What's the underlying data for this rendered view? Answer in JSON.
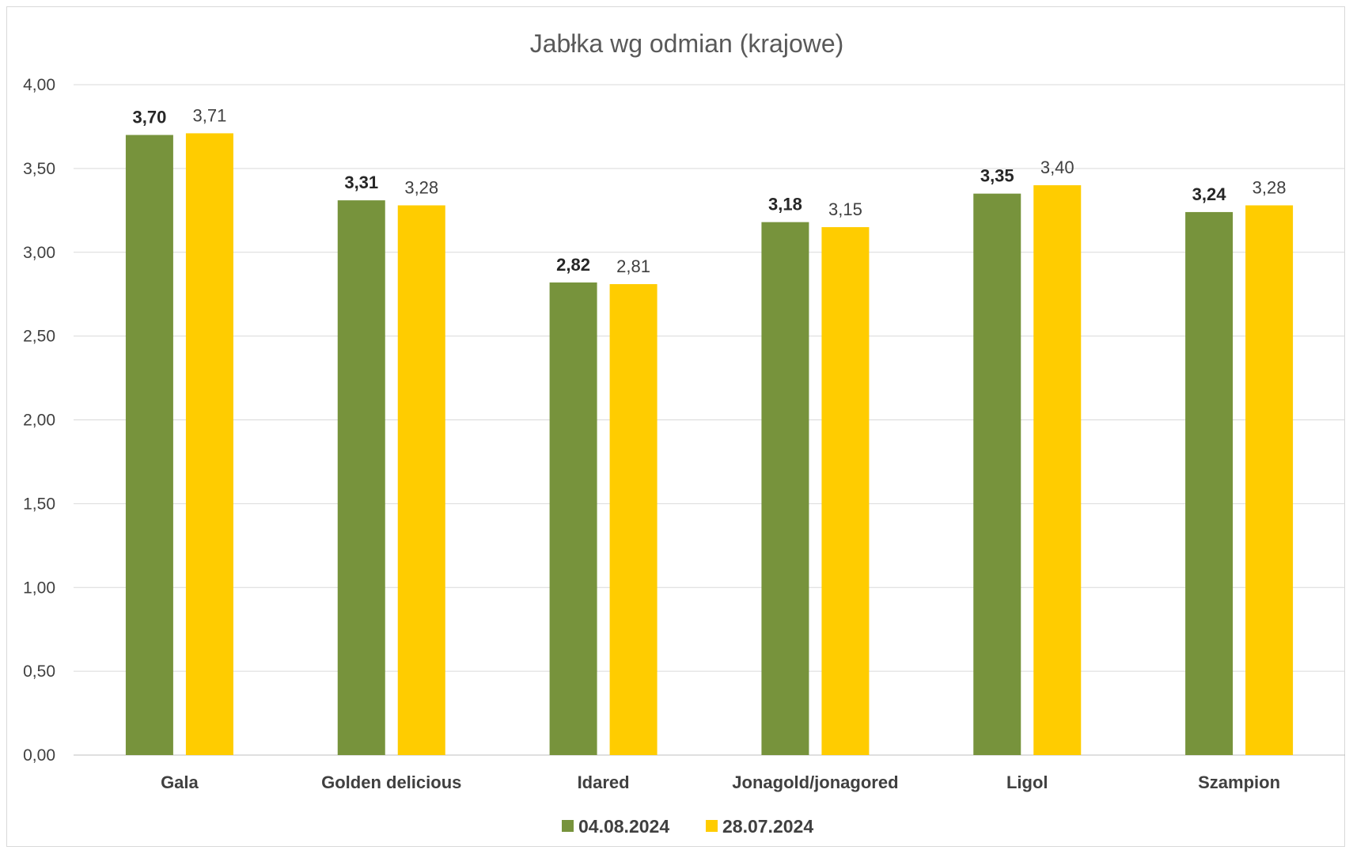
{
  "chart_data": {
    "type": "bar",
    "title": "Jabłka wg odmian (krajowe)",
    "xlabel": "",
    "ylabel": "",
    "categories": [
      "Gala",
      "Golden delicious",
      "Idared",
      "Jonagold/jonagored",
      "Ligol",
      "Szampion"
    ],
    "series": [
      {
        "name": "04.08.2024",
        "color": "#77933C",
        "values": [
          3.7,
          3.31,
          2.82,
          3.18,
          3.35,
          3.24
        ],
        "labels": [
          "3,70",
          "3,31",
          "2,82",
          "3,18",
          "3,35",
          "3,24"
        ],
        "label_bold": true
      },
      {
        "name": "28.07.2024",
        "color": "#FFCC00",
        "values": [
          3.71,
          3.28,
          2.81,
          3.15,
          3.4,
          3.28
        ],
        "labels": [
          "3,71",
          "3,28",
          "2,81",
          "3,15",
          "3,40",
          "3,28"
        ],
        "label_bold": false
      }
    ],
    "ylim": [
      0,
      4
    ],
    "yticks": [
      "0,00",
      "0,50",
      "1,00",
      "1,50",
      "2,00",
      "2,50",
      "3,00",
      "3,50",
      "4,00"
    ],
    "grid": true,
    "legend_position": "bottom"
  }
}
